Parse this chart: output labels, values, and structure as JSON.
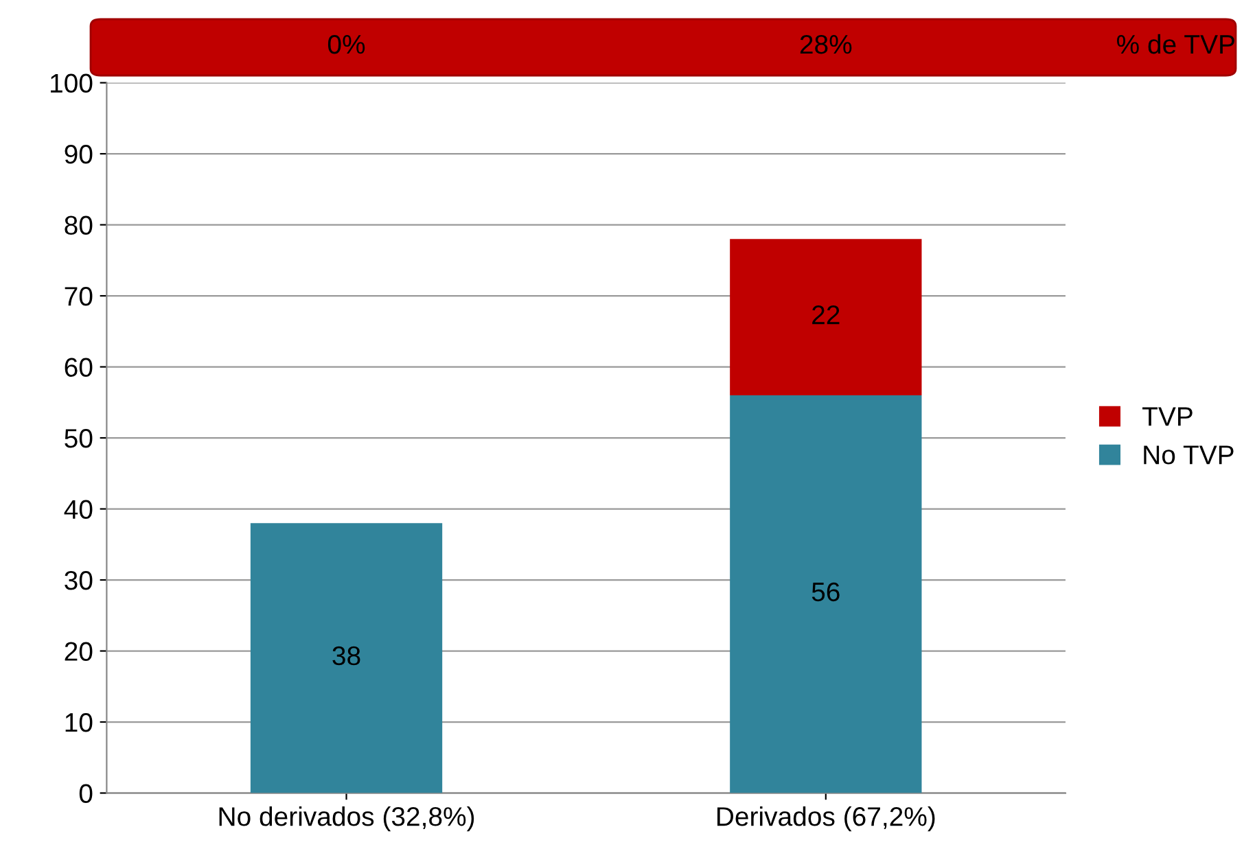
{
  "chart_data": {
    "type": "bar",
    "stacked": true,
    "categories": [
      "No derivados (32,8%)",
      "Derivados (67,2%)"
    ],
    "series": [
      {
        "name": "No TVP",
        "color": "#31849b",
        "values": [
          38,
          56
        ],
        "value_labels": [
          "38",
          "56"
        ]
      },
      {
        "name": "TVP",
        "color": "#c00000",
        "values": [
          0,
          22
        ],
        "value_labels": [
          null,
          "22"
        ]
      }
    ],
    "ylim": [
      0,
      100
    ],
    "yticks": [
      0,
      10,
      20,
      30,
      40,
      50,
      60,
      70,
      80,
      90,
      100
    ],
    "grid": "y",
    "legend": "right",
    "annotations": [
      "0%",
      "28%",
      "% de TVP"
    ]
  }
}
